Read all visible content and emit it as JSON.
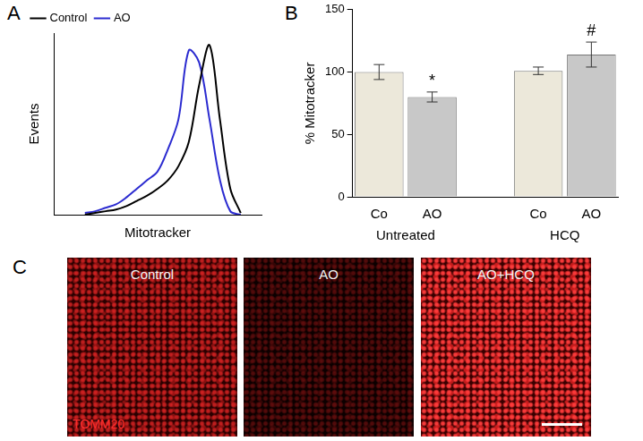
{
  "chart_data": [
    {
      "panel_label": "A",
      "type": "line",
      "x_label": "Mitotracker",
      "y_label": "Events",
      "x": [
        15,
        20,
        25,
        30,
        35,
        40,
        45,
        50,
        55,
        60,
        65,
        70,
        75,
        80,
        85,
        90
      ],
      "series": [
        {
          "name": "Control",
          "color": "#000000",
          "values": [
            0,
            1,
            2,
            3,
            5,
            8,
            11,
            15,
            20,
            28,
            42,
            75,
            98,
            55,
            15,
            1
          ]
        },
        {
          "name": "AO",
          "color": "#2b2bd0",
          "values": [
            1,
            2,
            4,
            6,
            10,
            15,
            20,
            25,
            38,
            55,
            95,
            88,
            55,
            20,
            2,
            0
          ]
        }
      ],
      "xlim": [
        0,
        100
      ],
      "ylim": [
        0,
        105
      ],
      "tick_labels": false,
      "grid": false,
      "legend": "upper left"
    },
    {
      "panel_label": "B",
      "type": "bar",
      "y_label": "% Mitotracker",
      "categories": [
        "Co",
        "AO",
        null,
        "Co",
        "AO"
      ],
      "values": [
        100,
        80,
        null,
        101,
        114
      ],
      "errors": [
        6,
        4,
        null,
        3,
        10
      ],
      "colors": [
        "#ece8da",
        "#c8c8c8",
        null,
        "#ece8da",
        "#c8c8c8"
      ],
      "annotations": [
        null,
        "*",
        null,
        null,
        "#"
      ],
      "group_labels": [
        "Untreated",
        "HCQ"
      ],
      "ylim": [
        0,
        150
      ],
      "yticks": [
        0,
        50,
        100,
        150
      ],
      "grid": false
    }
  ],
  "image_panel": {
    "panel_label": "C",
    "images": [
      {
        "label": "Control"
      },
      {
        "label": "AO"
      },
      {
        "label": "AO+HCQ"
      }
    ],
    "stain": "TOMM20"
  }
}
